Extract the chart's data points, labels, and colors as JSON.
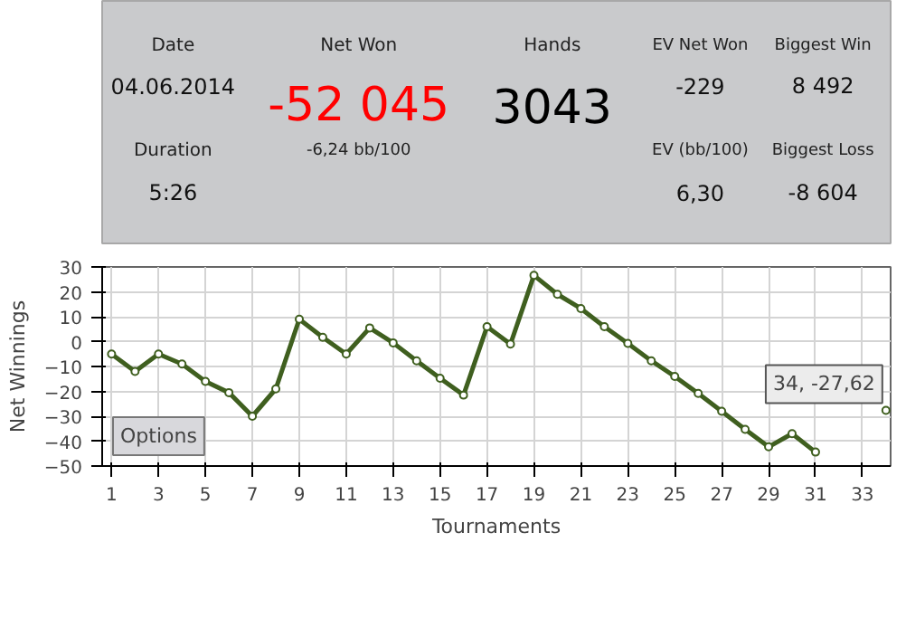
{
  "chart_data": [
    {
      "type": "other",
      "annotations": [
        "Date",
        "04.06.2014",
        "Duration",
        "5:26",
        "Net Won",
        "-52 045",
        "-6,24 bb/100",
        "Hands",
        "3043",
        "EV Net Won",
        "-229",
        "EV (bb/100)",
        "6,30",
        "Biggest Win",
        "8 492",
        "Biggest Loss",
        "-8 604"
      ]
    },
    {
      "type": "line",
      "xlabel": "Tournaments",
      "ylabel": "Net Winnings",
      "x": [
        1,
        2,
        3,
        4,
        5,
        6,
        7,
        8,
        9,
        10,
        11,
        12,
        13,
        14,
        15,
        16,
        17,
        18,
        19,
        20,
        21,
        22,
        23,
        24,
        25,
        26,
        27,
        28,
        29,
        30,
        31,
        32,
        33,
        34
      ],
      "series": [
        {
          "color": "#3f5f1f",
          "values": [
            -5,
            -12,
            -5,
            -9,
            -16,
            -20.5,
            -30,
            -19,
            9,
            1.7,
            -5,
            5.5,
            -0.5,
            -7.7,
            -14.7,
            -21.5,
            6,
            -1,
            26.6,
            19,
            13.3,
            6,
            -0.7,
            -7.7,
            -14,
            -20.8,
            -28,
            -35.3,
            -42.3,
            -37,
            -44.4,
            null,
            null,
            -27.62
          ]
        }
      ],
      "xlim": [
        0.6,
        34.2
      ],
      "xticks": [
        1,
        3,
        5,
        7,
        9,
        11,
        13,
        15,
        17,
        19,
        21,
        23,
        25,
        27,
        29,
        31,
        33
      ],
      "ylim": [
        -50,
        30
      ],
      "yticks": [
        -50,
        -40,
        -30,
        -20,
        -10,
        0,
        10,
        20,
        30
      ],
      "grid": true,
      "marker": "circle",
      "line_style": "solid",
      "annotations": [
        {
          "text": "34, -27,62",
          "x": 34,
          "y": -27.62
        },
        "Options"
      ]
    }
  ]
}
